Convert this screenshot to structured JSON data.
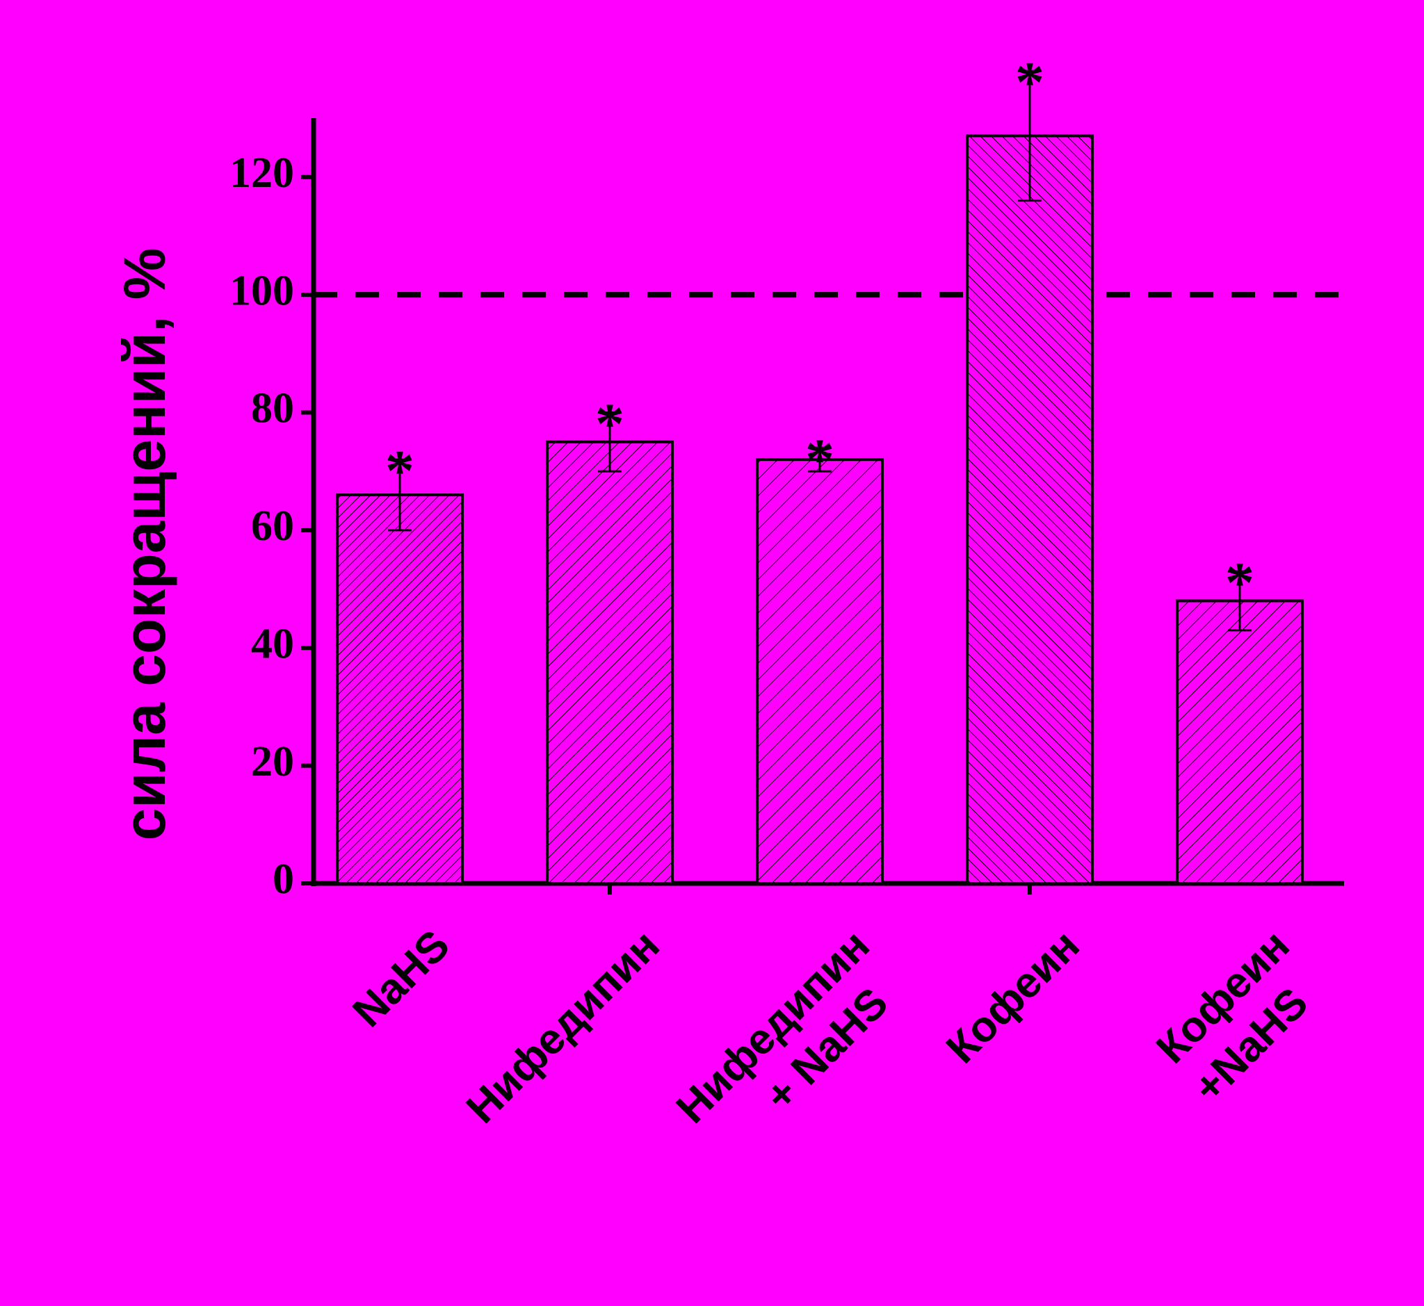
{
  "chart_data": {
    "type": "bar",
    "ylabel": "сила сокращений, %",
    "categories": [
      "NaHS",
      "Нифедипин",
      "Нифедипин\n+ NaHS",
      "Кофеин",
      "Кофеин\n+NaHS"
    ],
    "values": [
      66,
      75,
      72,
      127,
      48
    ],
    "errors": [
      6,
      5,
      2,
      11,
      5
    ],
    "annotations": [
      "*",
      "*",
      "*",
      "*",
      "*"
    ],
    "color": "#ff00ff",
    "reference_line": 100,
    "ylim": [
      0,
      130
    ],
    "yticks": [
      0,
      20,
      40,
      60,
      80,
      100,
      120
    ]
  }
}
